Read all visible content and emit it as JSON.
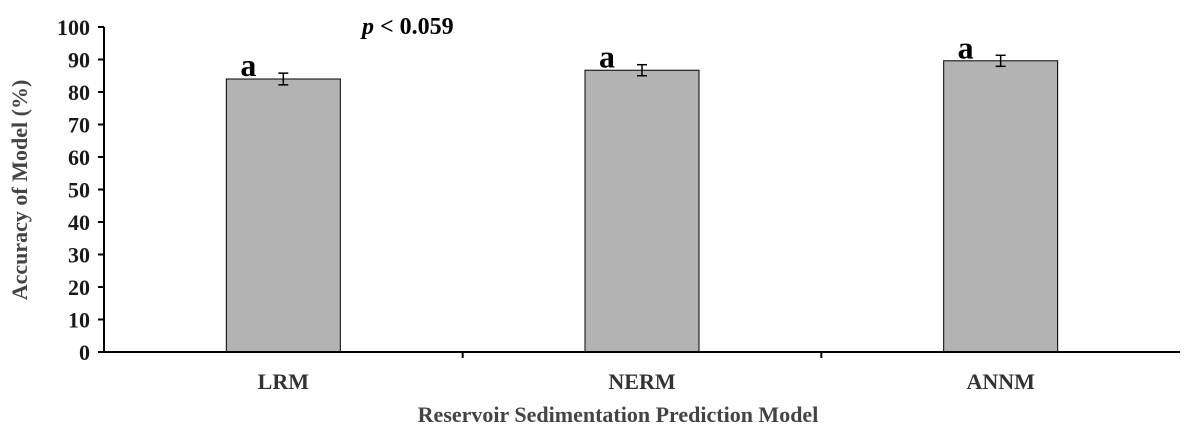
{
  "chart_data": {
    "type": "bar",
    "categories": [
      "LRM",
      "NERM",
      "ANNM"
    ],
    "values": [
      84,
      86.7,
      89.6
    ],
    "errors": [
      1.8,
      1.7,
      1.7
    ],
    "group_letters": [
      "a",
      "a",
      "a"
    ],
    "annotation": {
      "p_symbol": "p",
      "p_text": " < 0.059"
    },
    "xlabel": "Reservoir Sedimentation Prediction Model",
    "ylabel": "Accuracy of Model (%)",
    "ylim": [
      0,
      100
    ],
    "yticks": [
      0,
      10,
      20,
      30,
      40,
      50,
      60,
      70,
      80,
      90,
      100
    ],
    "grid": false,
    "bar_color": "#b3b3b3",
    "bar_edge_color": "#000000"
  }
}
